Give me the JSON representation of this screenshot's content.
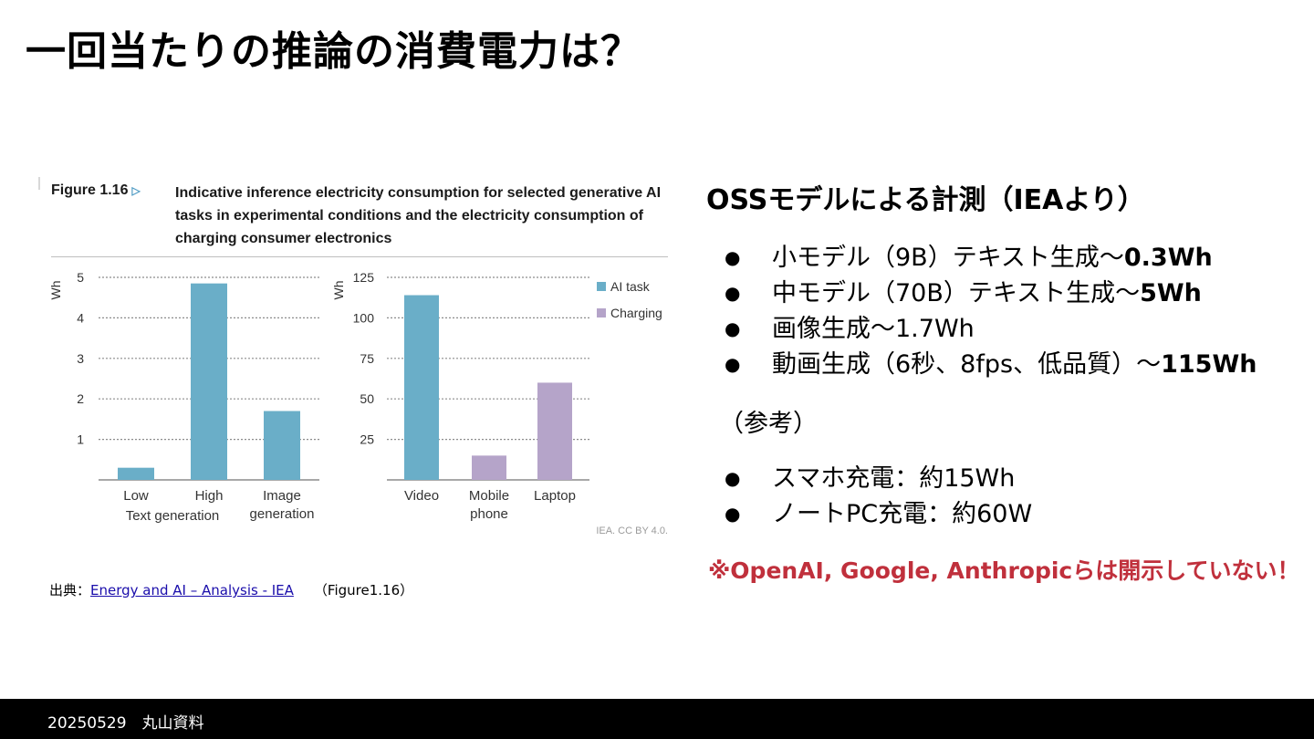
{
  "slide": {
    "title": "一回当たりの推論の消費電力は？",
    "source_prefix": "出典：",
    "source_link": "Energy and AI – Analysis - IEA",
    "source_figure": "（Figure1.16）",
    "footer": "20250529　丸山資料"
  },
  "figure": {
    "label": "Figure 1.16",
    "caption": "Indicative inference electricity consumption for selected generative AI tasks in experimental conditions and the electricity consumption of charging consumer electronics",
    "credit": "IEA. CC BY 4.0."
  },
  "right": {
    "title": "OSSモデルによる計測（IEAより）",
    "items": [
      {
        "text": "小モデル（9B）テキスト生成〜",
        "bold": "0.3Wh"
      },
      {
        "text": "中モデル（70B）テキスト生成〜",
        "bold": "5Wh"
      },
      {
        "text": "画像生成〜1.7Wh",
        "bold": ""
      },
      {
        "text": "動画生成（6秒、8fps、低品質）〜",
        "bold": "115Wh"
      }
    ],
    "ref_label": "（参考）",
    "ref_items": [
      {
        "text": "スマホ充電：約15Wh"
      },
      {
        "text": "ノートPC充電：約60W"
      }
    ],
    "notice": "※OpenAI, Google, Anthropicらは開示していない！",
    "bullet": "●"
  },
  "colors": {
    "ai_task": "#6aaec8",
    "charging": "#b5a4c9",
    "notice": "#c0303c"
  },
  "chart_data": [
    {
      "type": "bar",
      "ylabel": "Wh",
      "ylim": [
        0,
        5
      ],
      "yticks": [
        1,
        2,
        3,
        4,
        5
      ],
      "grid": true,
      "bars": [
        {
          "label": "Low",
          "value": 0.3,
          "series": "AI task"
        },
        {
          "label": "High",
          "value": 4.85,
          "series": "AI task"
        },
        {
          "label": "Image\ngeneration",
          "value": 1.7,
          "series": "AI task"
        }
      ],
      "group_label": "Text generation"
    },
    {
      "type": "bar",
      "ylabel": "Wh",
      "ylim": [
        0,
        125
      ],
      "yticks": [
        25,
        50,
        75,
        100,
        125
      ],
      "grid": true,
      "bars": [
        {
          "label": "Video",
          "value": 114,
          "series": "AI task"
        },
        {
          "label": "Mobile\nphone",
          "value": 15,
          "series": "Charging"
        },
        {
          "label": "Laptop",
          "value": 60,
          "series": "Charging"
        }
      ],
      "legend": [
        "AI task",
        "Charging"
      ],
      "legend_position": "top-right"
    }
  ]
}
